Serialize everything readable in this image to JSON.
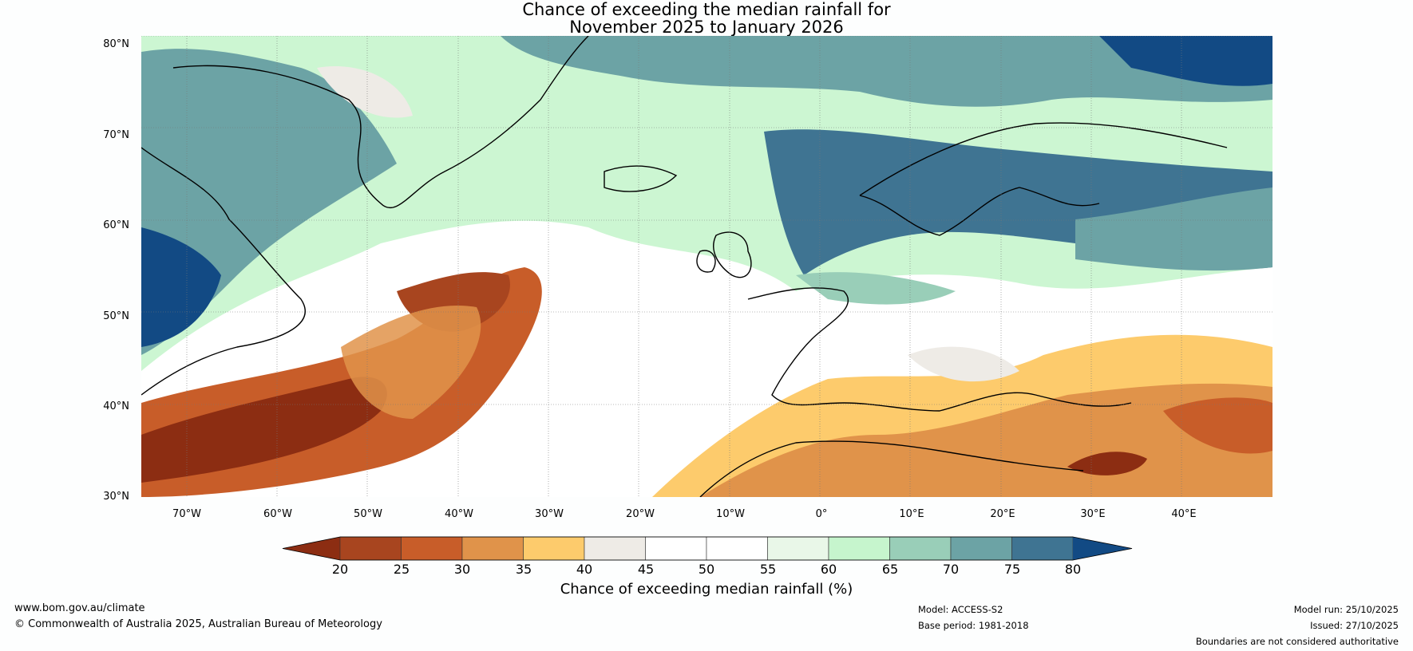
{
  "title": {
    "line1": "Chance of exceeding the median rainfall for",
    "line2": "November 2025 to January 2026"
  },
  "map": {
    "lat_labels": [
      "80°N",
      "70°N",
      "60°N",
      "50°N",
      "40°N",
      "30°N"
    ],
    "lon_labels": [
      "70°W",
      "60°W",
      "50°W",
      "40°W",
      "30°W",
      "20°W",
      "10°W",
      "0°",
      "10°E",
      "20°E",
      "30°E",
      "40°E"
    ],
    "lat_range": [
      30,
      80
    ],
    "lon_range": [
      -75,
      50
    ]
  },
  "colorbar": {
    "ticks": [
      "20",
      "25",
      "30",
      "35",
      "40",
      "45",
      "50",
      "55",
      "60",
      "65",
      "70",
      "75",
      "80"
    ],
    "label": "Chance of exceeding median rainfall (%)",
    "colors": {
      "under": "#8c2d12",
      "b20_25": "#a8451f",
      "b25_30": "#c85d29",
      "b30_35": "#e0934a",
      "b35_40": "#fdcb6c",
      "b40_45": "#eeebe6",
      "b45_50": "#ffffff",
      "b50_55": "#ffffff",
      "b55_60": "#e9f7e8",
      "b60_65": "#c6f5cd",
      "b65_70": "#99ceb8",
      "b70_75": "#6ca3a5",
      "b75_80": "#3f7492",
      "over": "#124a84"
    }
  },
  "footer": {
    "website": "www.bom.gov.au/climate",
    "copyright": "© Commonwealth of Australia 2025, Australian Bureau of Meteorology",
    "model": "Model: ACCESS-S2",
    "base_period": "Base period: 1981-2018",
    "model_run": "Model run: 25/10/2025",
    "issued": "Issued: 27/10/2025",
    "disclaimer": "Boundaries are not considered authoritative"
  }
}
